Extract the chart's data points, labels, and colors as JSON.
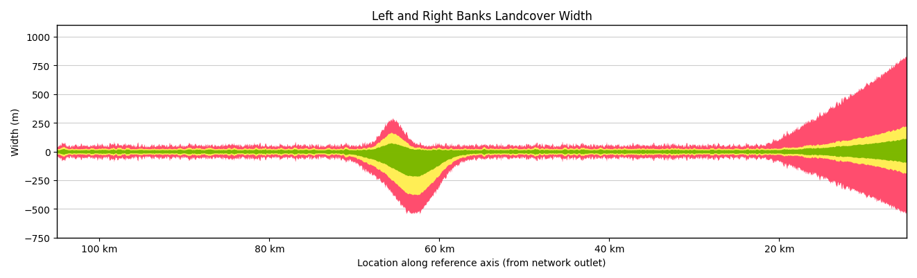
{
  "title": "Left and Right Banks Landcover Width",
  "xlabel": "Location along reference axis (from network outlet)",
  "ylabel": "Width (m)",
  "xlim": [
    105000,
    5000
  ],
  "ylim": [
    -750,
    1100
  ],
  "yticks": [
    -750,
    -500,
    -250,
    0,
    250,
    500,
    750,
    1000
  ],
  "xtick_positions": [
    100000,
    80000,
    60000,
    40000,
    20000
  ],
  "xtick_labels": [
    "100 km",
    "80 km",
    "60 km",
    "40 km",
    "20 km"
  ],
  "background_color": "#ffffff",
  "grid_color": "#cccccc",
  "color_red": "#ff4d6e",
  "color_yellow": "#ffee55",
  "color_green": "#7db800"
}
